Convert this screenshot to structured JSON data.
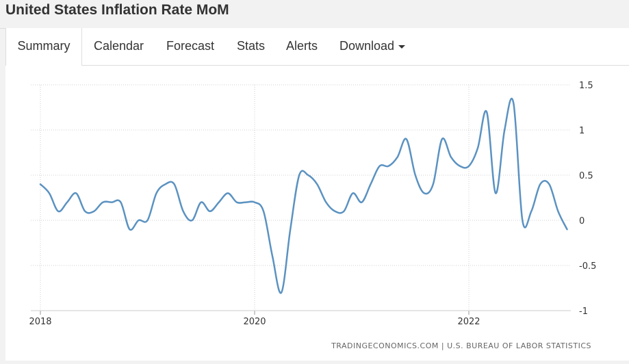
{
  "header": {
    "title": "United States Inflation Rate MoM"
  },
  "tabs": [
    {
      "label": "Summary",
      "active": true
    },
    {
      "label": "Calendar"
    },
    {
      "label": "Forecast"
    },
    {
      "label": "Stats"
    },
    {
      "label": "Alerts"
    },
    {
      "label": "Download"
    }
  ],
  "source": "TRADINGECONOMICS.COM  |  U.S. BUREAU OF LABOR STATISTICS",
  "colors": {
    "line": "#5b92c1",
    "grid": "#cfcfcf"
  },
  "chart_data": {
    "type": "line",
    "title": "United States Inflation Rate MoM",
    "xlabel": "",
    "ylabel": "",
    "x_ticks": [
      "2018",
      "2020",
      "2022"
    ],
    "y_ticks": [
      -1,
      -0.5,
      0,
      0.5,
      1,
      1.5
    ],
    "y_tick_labels": [
      "-1",
      "-0.5",
      "0",
      "0.5",
      "1",
      "1.5"
    ],
    "ylim": [
      -1,
      1.5
    ],
    "y_axis_position": "right",
    "grid": true,
    "series": [
      {
        "name": "Inflation Rate MoM",
        "x": [
          "2018-01",
          "2018-02",
          "2018-03",
          "2018-04",
          "2018-05",
          "2018-06",
          "2018-07",
          "2018-08",
          "2018-09",
          "2018-10",
          "2018-11",
          "2018-12",
          "2019-01",
          "2019-02",
          "2019-03",
          "2019-04",
          "2019-05",
          "2019-06",
          "2019-07",
          "2019-08",
          "2019-09",
          "2019-10",
          "2019-11",
          "2019-12",
          "2020-01",
          "2020-02",
          "2020-03",
          "2020-04",
          "2020-05",
          "2020-06",
          "2020-07",
          "2020-08",
          "2020-09",
          "2020-10",
          "2020-11",
          "2020-12",
          "2021-01",
          "2021-02",
          "2021-03",
          "2021-04",
          "2021-05",
          "2021-06",
          "2021-07",
          "2021-08",
          "2021-09",
          "2021-10",
          "2021-11",
          "2021-12",
          "2022-01",
          "2022-02",
          "2022-03",
          "2022-04",
          "2022-05",
          "2022-06",
          "2022-07",
          "2022-08",
          "2022-09",
          "2022-10",
          "2022-11",
          "2022-12"
        ],
        "values": [
          0.4,
          0.3,
          0.1,
          0.2,
          0.3,
          0.1,
          0.1,
          0.2,
          0.2,
          0.2,
          -0.1,
          0.0,
          0.0,
          0.3,
          0.4,
          0.4,
          0.1,
          0.0,
          0.2,
          0.1,
          0.2,
          0.3,
          0.2,
          0.2,
          0.2,
          0.1,
          -0.4,
          -0.8,
          -0.1,
          0.5,
          0.5,
          0.4,
          0.2,
          0.1,
          0.1,
          0.3,
          0.2,
          0.4,
          0.6,
          0.6,
          0.7,
          0.9,
          0.5,
          0.3,
          0.4,
          0.9,
          0.7,
          0.6,
          0.6,
          0.8,
          1.2,
          0.3,
          1.0,
          1.3,
          0.0,
          0.1,
          0.4,
          0.4,
          0.1,
          -0.1
        ]
      }
    ]
  }
}
